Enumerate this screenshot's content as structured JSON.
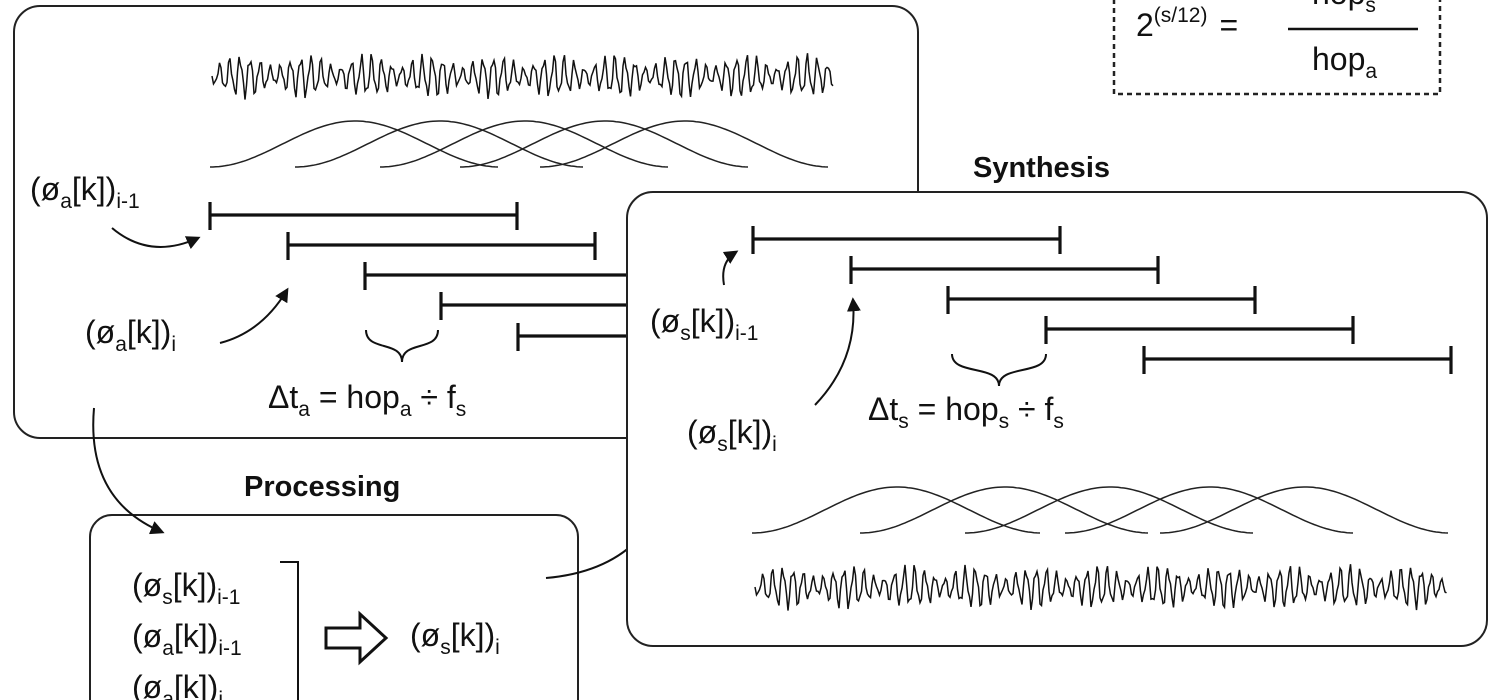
{
  "formula": {
    "lhs_base": "2",
    "lhs_exp": "(s/12)",
    "equals": "=",
    "num_main": "hop",
    "num_sub": "s",
    "den_main": "hop",
    "den_sub": "a"
  },
  "analysis": {
    "phase_prev": {
      "main": "(ø",
      "sub": "a",
      "rest": "[k])",
      "tail": "i-1"
    },
    "phase_curr": {
      "main": "(ø",
      "sub": "a",
      "rest": "[k])",
      "tail": "i"
    },
    "delta": {
      "pre": "Δt",
      "sub1": "a",
      "mid": " = hop",
      "sub2": "a",
      "post": " ÷ f",
      "sub3": "s"
    }
  },
  "synthesis": {
    "title": "Synthesis",
    "phase_prev": {
      "main": "(ø",
      "sub": "s",
      "rest": "[k])",
      "tail": "i-1"
    },
    "phase_curr": {
      "main": "(ø",
      "sub": "s",
      "rest": "[k])",
      "tail": "i"
    },
    "delta": {
      "pre": "Δt",
      "sub1": "s",
      "mid": " = hop",
      "sub2": "s",
      "post": " ÷ f",
      "sub3": "s"
    }
  },
  "processing": {
    "title": "Processing",
    "inputs": [
      {
        "main": "(ø",
        "sub": "s",
        "rest": "[k])",
        "tail": "i-1"
      },
      {
        "main": "(ø",
        "sub": "a",
        "rest": "[k])",
        "tail": "i-1"
      },
      {
        "main": "(ø",
        "sub": "a",
        "rest": "[k])",
        "tail": "i"
      }
    ],
    "output": {
      "main": "(ø",
      "sub": "s",
      "rest": "[k])",
      "tail": "i"
    }
  }
}
